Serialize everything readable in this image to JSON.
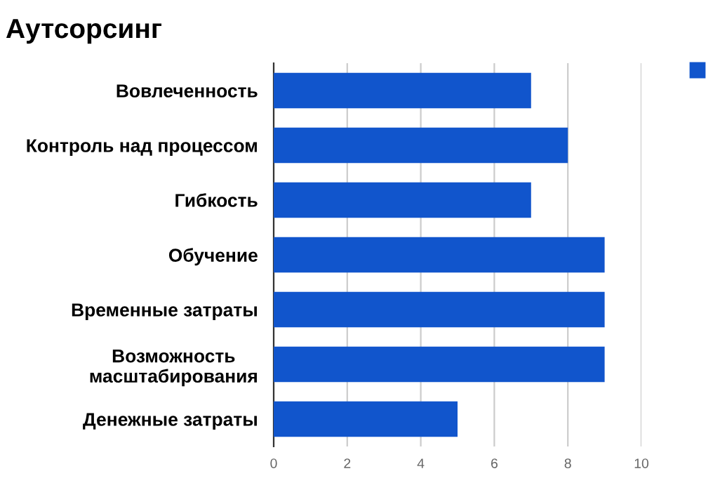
{
  "chart_data": {
    "type": "bar",
    "orientation": "horizontal",
    "title": "Аутсорсинг",
    "categories": [
      "Вовлеченность",
      "Контроль над процессом",
      "Гибкость",
      "Обучение",
      "Временные затраты",
      "Возможность\nмасштабирования",
      "Денежные затраты"
    ],
    "series": [
      {
        "color": "#1155cc",
        "values": [
          7,
          8,
          7,
          9,
          9,
          9,
          5
        ]
      }
    ],
    "xlim": [
      0,
      10
    ],
    "xticks": [
      0,
      2,
      4,
      6,
      8,
      10
    ],
    "grid": "x"
  }
}
